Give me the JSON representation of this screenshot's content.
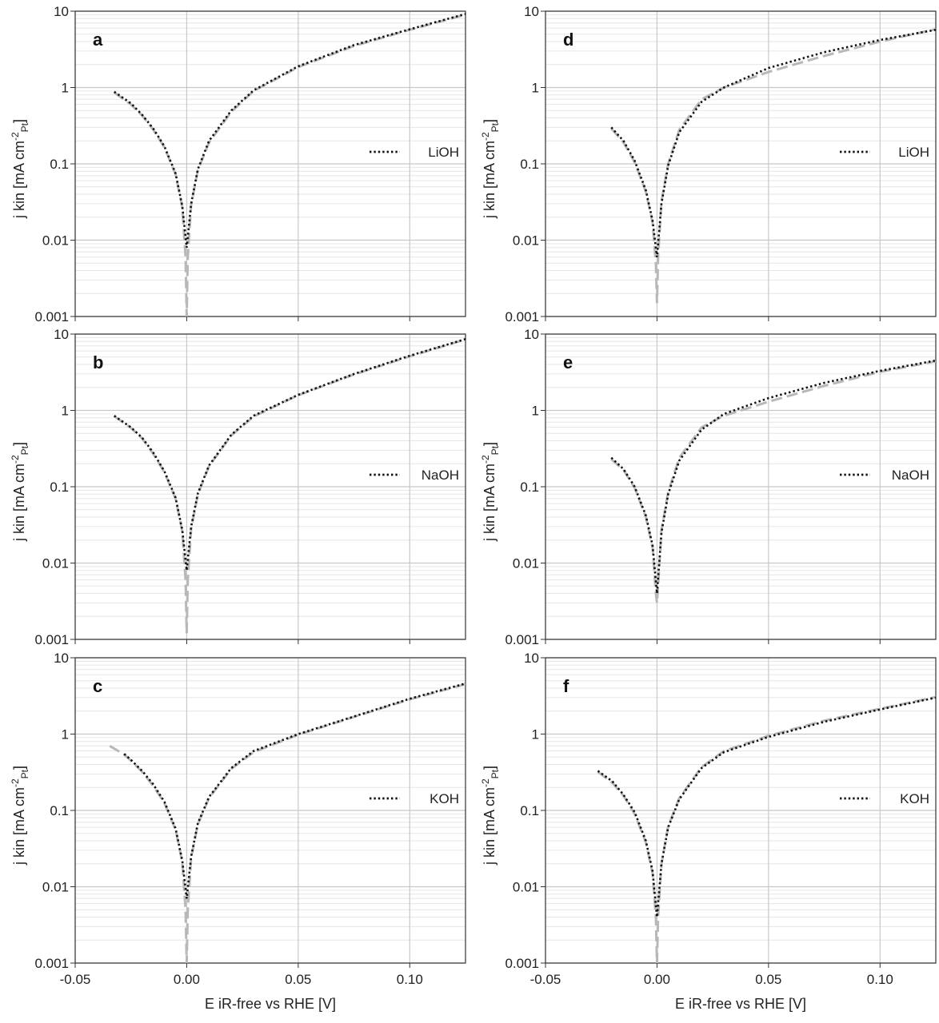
{
  "figure": {
    "xlabel": "E iR-free vs RHE [V]",
    "ylabel": "j kin [mA cm",
    "ylabel_sup": "-2",
    "ylabel_sub": "Pt",
    "ylabel_close": "]",
    "x_ticks": [
      "-0.05",
      "0.00",
      "0.05",
      "0.10"
    ],
    "y_ticks": [
      "0.001",
      "0.01",
      "0.1",
      "1",
      "10"
    ]
  },
  "colors": {
    "measured": "#111111",
    "fit": "#b8b8b8",
    "grid": "#c8c8c8",
    "minor_grid": "#e6e6e6",
    "axis": "#333333"
  },
  "chart_data": [
    {
      "panel": "a",
      "type": "line",
      "electrolyte": "LiOH",
      "xlim": [
        -0.05,
        0.125
      ],
      "ylim": [
        0.001,
        10
      ],
      "yscale": "log",
      "grid": true,
      "legend": "right",
      "series": [
        {
          "name": "LiOH",
          "style": "dotted",
          "x": [
            -0.0325,
            -0.025,
            -0.02,
            -0.015,
            -0.01,
            -0.005,
            -0.002,
            0.0,
            0.002,
            0.005,
            0.01,
            0.02,
            0.03,
            0.05,
            0.075,
            0.1,
            0.125
          ],
          "y": [
            0.88,
            0.62,
            0.44,
            0.29,
            0.17,
            0.075,
            0.028,
            0.008,
            0.03,
            0.085,
            0.2,
            0.5,
            0.92,
            1.9,
            3.6,
            5.8,
            9.2
          ]
        },
        {
          "style": "dashed",
          "x": [
            -0.0325,
            -0.025,
            -0.02,
            -0.015,
            -0.01,
            -0.005,
            -0.002,
            -0.0005,
            0.0,
            0.0005,
            0.002,
            0.005,
            0.01,
            0.02,
            0.03,
            0.05,
            0.075,
            0.1,
            0.125
          ],
          "y": [
            0.86,
            0.6,
            0.43,
            0.28,
            0.165,
            0.073,
            0.027,
            0.006,
            0.001,
            0.006,
            0.029,
            0.083,
            0.19,
            0.48,
            0.9,
            1.85,
            3.5,
            5.7,
            9.0
          ]
        }
      ]
    },
    {
      "panel": "b",
      "type": "line",
      "electrolyte": "NaOH",
      "xlim": [
        -0.05,
        0.125
      ],
      "ylim": [
        0.001,
        10
      ],
      "yscale": "log",
      "grid": true,
      "legend": "right",
      "series": [
        {
          "name": "NaOH",
          "style": "dotted",
          "x": [
            -0.0325,
            -0.025,
            -0.02,
            -0.015,
            -0.01,
            -0.005,
            -0.002,
            0.0,
            0.002,
            0.005,
            0.01,
            0.02,
            0.03,
            0.05,
            0.075,
            0.1,
            0.125
          ],
          "y": [
            0.85,
            0.6,
            0.44,
            0.28,
            0.16,
            0.072,
            0.027,
            0.008,
            0.03,
            0.082,
            0.19,
            0.48,
            0.85,
            1.6,
            3.0,
            5.2,
            8.6
          ]
        },
        {
          "style": "dashed",
          "x": [
            -0.0325,
            -0.025,
            -0.02,
            -0.015,
            -0.01,
            -0.005,
            -0.002,
            -0.0005,
            0.0,
            0.0005,
            0.002,
            0.005,
            0.01,
            0.02,
            0.03,
            0.05,
            0.075,
            0.1,
            0.125
          ],
          "y": [
            0.84,
            0.59,
            0.43,
            0.27,
            0.155,
            0.07,
            0.026,
            0.006,
            0.0012,
            0.006,
            0.028,
            0.08,
            0.185,
            0.47,
            0.83,
            1.58,
            2.95,
            5.1,
            8.5
          ]
        }
      ]
    },
    {
      "panel": "c",
      "type": "line",
      "electrolyte": "KOH",
      "xlim": [
        -0.05,
        0.125
      ],
      "ylim": [
        0.001,
        10
      ],
      "yscale": "log",
      "grid": true,
      "legend": "right",
      "series": [
        {
          "name": "KOH",
          "style": "dotted",
          "x": [
            -0.028,
            -0.025,
            -0.02,
            -0.015,
            -0.01,
            -0.005,
            -0.002,
            0.0,
            0.002,
            0.005,
            0.01,
            0.02,
            0.03,
            0.05,
            0.075,
            0.1,
            0.125
          ],
          "y": [
            0.55,
            0.46,
            0.33,
            0.22,
            0.13,
            0.058,
            0.022,
            0.007,
            0.025,
            0.068,
            0.15,
            0.36,
            0.6,
            1.0,
            1.7,
            2.9,
            4.6
          ]
        },
        {
          "style": "dashed",
          "x": [
            -0.0345,
            -0.028,
            -0.025,
            -0.02,
            -0.015,
            -0.01,
            -0.005,
            -0.002,
            -0.0005,
            0.0,
            0.0005,
            0.002,
            0.005,
            0.01,
            0.02,
            0.03,
            0.05,
            0.075,
            0.1,
            0.125
          ],
          "y": [
            0.7,
            0.54,
            0.45,
            0.32,
            0.21,
            0.125,
            0.056,
            0.021,
            0.005,
            0.001,
            0.005,
            0.024,
            0.066,
            0.145,
            0.35,
            0.58,
            0.98,
            1.68,
            2.85,
            4.5
          ]
        }
      ]
    },
    {
      "panel": "d",
      "type": "line",
      "electrolyte": "LiOH",
      "xlim": [
        -0.05,
        0.125
      ],
      "ylim": [
        0.001,
        10
      ],
      "yscale": "log",
      "grid": true,
      "legend": "right",
      "series": [
        {
          "name": "LiOH",
          "style": "dotted",
          "x": [
            -0.0205,
            -0.015,
            -0.01,
            -0.005,
            -0.002,
            0.0,
            0.002,
            0.005,
            0.01,
            0.02,
            0.03,
            0.05,
            0.075,
            0.1,
            0.125
          ],
          "y": [
            0.3,
            0.2,
            0.11,
            0.045,
            0.018,
            0.006,
            0.03,
            0.095,
            0.26,
            0.65,
            1.0,
            1.8,
            2.9,
            4.2,
            5.7
          ]
        },
        {
          "style": "dashed",
          "x": [
            -0.0205,
            -0.015,
            -0.01,
            -0.005,
            -0.002,
            -0.0005,
            0.0,
            0.0005,
            0.002,
            0.005,
            0.01,
            0.02,
            0.03,
            0.05,
            0.075,
            0.1,
            0.125
          ],
          "y": [
            0.29,
            0.19,
            0.105,
            0.043,
            0.017,
            0.005,
            0.0015,
            0.006,
            0.032,
            0.1,
            0.28,
            0.7,
            1.0,
            1.6,
            2.6,
            4.0,
            5.8
          ]
        }
      ]
    },
    {
      "panel": "e",
      "type": "line",
      "electrolyte": "NaOH",
      "xlim": [
        -0.05,
        0.125
      ],
      "ylim": [
        0.001,
        10
      ],
      "yscale": "log",
      "grid": true,
      "legend": "right",
      "series": [
        {
          "name": "NaOH",
          "style": "dotted",
          "x": [
            -0.0205,
            -0.015,
            -0.01,
            -0.005,
            -0.002,
            0.0,
            0.002,
            0.005,
            0.01,
            0.02,
            0.03,
            0.05,
            0.075,
            0.1,
            0.125
          ],
          "y": [
            0.24,
            0.17,
            0.1,
            0.042,
            0.017,
            0.004,
            0.025,
            0.08,
            0.22,
            0.56,
            0.9,
            1.45,
            2.3,
            3.3,
            4.5
          ]
        },
        {
          "style": "dashed",
          "x": [
            -0.0205,
            -0.015,
            -0.01,
            -0.005,
            -0.002,
            -0.0005,
            0.0,
            0.0005,
            0.002,
            0.005,
            0.01,
            0.02,
            0.03,
            0.05,
            0.075,
            0.1,
            0.125
          ],
          "y": [
            0.23,
            0.165,
            0.097,
            0.04,
            0.016,
            0.004,
            0.003,
            0.005,
            0.027,
            0.085,
            0.24,
            0.6,
            0.85,
            1.3,
            2.1,
            3.2,
            4.4
          ]
        }
      ]
    },
    {
      "panel": "f",
      "type": "line",
      "electrolyte": "KOH",
      "xlim": [
        -0.05,
        0.125
      ],
      "ylim": [
        0.001,
        10
      ],
      "yscale": "log",
      "grid": true,
      "legend": "right",
      "series": [
        {
          "name": "KOH",
          "style": "dotted",
          "x": [
            -0.0265,
            -0.02,
            -0.015,
            -0.01,
            -0.005,
            -0.002,
            0.0,
            0.002,
            0.005,
            0.01,
            0.02,
            0.03,
            0.05,
            0.075,
            0.1,
            0.125
          ],
          "y": [
            0.33,
            0.24,
            0.16,
            0.095,
            0.04,
            0.016,
            0.004,
            0.02,
            0.06,
            0.14,
            0.36,
            0.58,
            0.92,
            1.45,
            2.1,
            3.0
          ]
        },
        {
          "style": "dashed",
          "x": [
            -0.0265,
            -0.02,
            -0.015,
            -0.01,
            -0.005,
            -0.002,
            -0.0005,
            0.0,
            0.0005,
            0.002,
            0.005,
            0.01,
            0.02,
            0.03,
            0.05,
            0.075,
            0.1,
            0.125
          ],
          "y": [
            0.32,
            0.23,
            0.155,
            0.09,
            0.038,
            0.015,
            0.004,
            0.001,
            0.004,
            0.02,
            0.062,
            0.145,
            0.37,
            0.6,
            0.95,
            1.5,
            2.15,
            3.05
          ]
        }
      ]
    }
  ]
}
